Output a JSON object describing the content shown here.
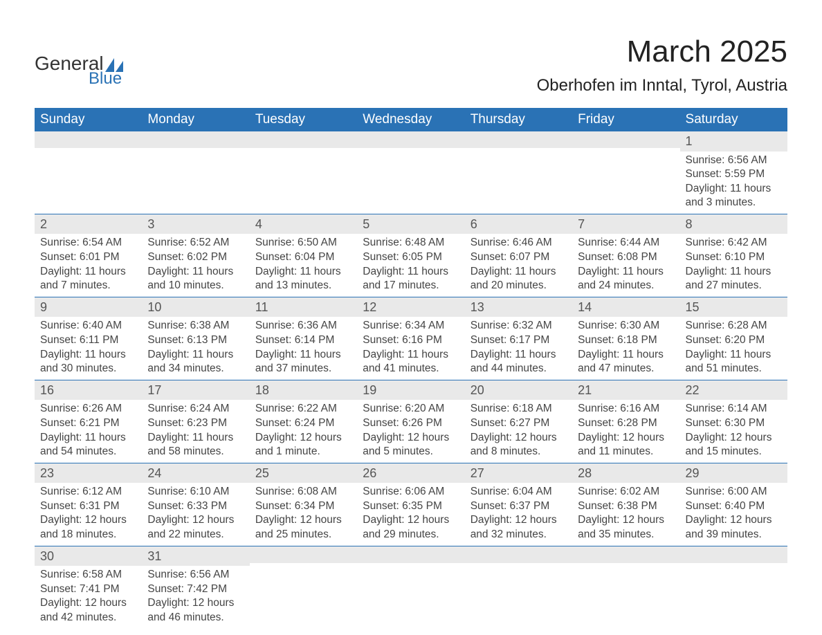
{
  "logo": {
    "word1": "General",
    "word2": "Blue",
    "tri_color": "#2a72b5"
  },
  "title": {
    "month": "March 2025",
    "location": "Oberhofen im Inntal, Tyrol, Austria"
  },
  "colors": {
    "header_bg": "#2a72b5",
    "header_text": "#ffffff",
    "daynum_bg": "#e9e9e9",
    "daynum_text": "#555555",
    "body_text": "#444444",
    "row_border": "#2a72b5",
    "page_bg": "#ffffff"
  },
  "day_headers": [
    "Sunday",
    "Monday",
    "Tuesday",
    "Wednesday",
    "Thursday",
    "Friday",
    "Saturday"
  ],
  "weeks": [
    [
      {
        "n": "",
        "sr": "",
        "ss": "",
        "dl": ""
      },
      {
        "n": "",
        "sr": "",
        "ss": "",
        "dl": ""
      },
      {
        "n": "",
        "sr": "",
        "ss": "",
        "dl": ""
      },
      {
        "n": "",
        "sr": "",
        "ss": "",
        "dl": ""
      },
      {
        "n": "",
        "sr": "",
        "ss": "",
        "dl": ""
      },
      {
        "n": "",
        "sr": "",
        "ss": "",
        "dl": ""
      },
      {
        "n": "1",
        "sr": "Sunrise: 6:56 AM",
        "ss": "Sunset: 5:59 PM",
        "dl": "Daylight: 11 hours and 3 minutes."
      }
    ],
    [
      {
        "n": "2",
        "sr": "Sunrise: 6:54 AM",
        "ss": "Sunset: 6:01 PM",
        "dl": "Daylight: 11 hours and 7 minutes."
      },
      {
        "n": "3",
        "sr": "Sunrise: 6:52 AM",
        "ss": "Sunset: 6:02 PM",
        "dl": "Daylight: 11 hours and 10 minutes."
      },
      {
        "n": "4",
        "sr": "Sunrise: 6:50 AM",
        "ss": "Sunset: 6:04 PM",
        "dl": "Daylight: 11 hours and 13 minutes."
      },
      {
        "n": "5",
        "sr": "Sunrise: 6:48 AM",
        "ss": "Sunset: 6:05 PM",
        "dl": "Daylight: 11 hours and 17 minutes."
      },
      {
        "n": "6",
        "sr": "Sunrise: 6:46 AM",
        "ss": "Sunset: 6:07 PM",
        "dl": "Daylight: 11 hours and 20 minutes."
      },
      {
        "n": "7",
        "sr": "Sunrise: 6:44 AM",
        "ss": "Sunset: 6:08 PM",
        "dl": "Daylight: 11 hours and 24 minutes."
      },
      {
        "n": "8",
        "sr": "Sunrise: 6:42 AM",
        "ss": "Sunset: 6:10 PM",
        "dl": "Daylight: 11 hours and 27 minutes."
      }
    ],
    [
      {
        "n": "9",
        "sr": "Sunrise: 6:40 AM",
        "ss": "Sunset: 6:11 PM",
        "dl": "Daylight: 11 hours and 30 minutes."
      },
      {
        "n": "10",
        "sr": "Sunrise: 6:38 AM",
        "ss": "Sunset: 6:13 PM",
        "dl": "Daylight: 11 hours and 34 minutes."
      },
      {
        "n": "11",
        "sr": "Sunrise: 6:36 AM",
        "ss": "Sunset: 6:14 PM",
        "dl": "Daylight: 11 hours and 37 minutes."
      },
      {
        "n": "12",
        "sr": "Sunrise: 6:34 AM",
        "ss": "Sunset: 6:16 PM",
        "dl": "Daylight: 11 hours and 41 minutes."
      },
      {
        "n": "13",
        "sr": "Sunrise: 6:32 AM",
        "ss": "Sunset: 6:17 PM",
        "dl": "Daylight: 11 hours and 44 minutes."
      },
      {
        "n": "14",
        "sr": "Sunrise: 6:30 AM",
        "ss": "Sunset: 6:18 PM",
        "dl": "Daylight: 11 hours and 47 minutes."
      },
      {
        "n": "15",
        "sr": "Sunrise: 6:28 AM",
        "ss": "Sunset: 6:20 PM",
        "dl": "Daylight: 11 hours and 51 minutes."
      }
    ],
    [
      {
        "n": "16",
        "sr": "Sunrise: 6:26 AM",
        "ss": "Sunset: 6:21 PM",
        "dl": "Daylight: 11 hours and 54 minutes."
      },
      {
        "n": "17",
        "sr": "Sunrise: 6:24 AM",
        "ss": "Sunset: 6:23 PM",
        "dl": "Daylight: 11 hours and 58 minutes."
      },
      {
        "n": "18",
        "sr": "Sunrise: 6:22 AM",
        "ss": "Sunset: 6:24 PM",
        "dl": "Daylight: 12 hours and 1 minute."
      },
      {
        "n": "19",
        "sr": "Sunrise: 6:20 AM",
        "ss": "Sunset: 6:26 PM",
        "dl": "Daylight: 12 hours and 5 minutes."
      },
      {
        "n": "20",
        "sr": "Sunrise: 6:18 AM",
        "ss": "Sunset: 6:27 PM",
        "dl": "Daylight: 12 hours and 8 minutes."
      },
      {
        "n": "21",
        "sr": "Sunrise: 6:16 AM",
        "ss": "Sunset: 6:28 PM",
        "dl": "Daylight: 12 hours and 11 minutes."
      },
      {
        "n": "22",
        "sr": "Sunrise: 6:14 AM",
        "ss": "Sunset: 6:30 PM",
        "dl": "Daylight: 12 hours and 15 minutes."
      }
    ],
    [
      {
        "n": "23",
        "sr": "Sunrise: 6:12 AM",
        "ss": "Sunset: 6:31 PM",
        "dl": "Daylight: 12 hours and 18 minutes."
      },
      {
        "n": "24",
        "sr": "Sunrise: 6:10 AM",
        "ss": "Sunset: 6:33 PM",
        "dl": "Daylight: 12 hours and 22 minutes."
      },
      {
        "n": "25",
        "sr": "Sunrise: 6:08 AM",
        "ss": "Sunset: 6:34 PM",
        "dl": "Daylight: 12 hours and 25 minutes."
      },
      {
        "n": "26",
        "sr": "Sunrise: 6:06 AM",
        "ss": "Sunset: 6:35 PM",
        "dl": "Daylight: 12 hours and 29 minutes."
      },
      {
        "n": "27",
        "sr": "Sunrise: 6:04 AM",
        "ss": "Sunset: 6:37 PM",
        "dl": "Daylight: 12 hours and 32 minutes."
      },
      {
        "n": "28",
        "sr": "Sunrise: 6:02 AM",
        "ss": "Sunset: 6:38 PM",
        "dl": "Daylight: 12 hours and 35 minutes."
      },
      {
        "n": "29",
        "sr": "Sunrise: 6:00 AM",
        "ss": "Sunset: 6:40 PM",
        "dl": "Daylight: 12 hours and 39 minutes."
      }
    ],
    [
      {
        "n": "30",
        "sr": "Sunrise: 6:58 AM",
        "ss": "Sunset: 7:41 PM",
        "dl": "Daylight: 12 hours and 42 minutes."
      },
      {
        "n": "31",
        "sr": "Sunrise: 6:56 AM",
        "ss": "Sunset: 7:42 PM",
        "dl": "Daylight: 12 hours and 46 minutes."
      },
      {
        "n": "",
        "sr": "",
        "ss": "",
        "dl": ""
      },
      {
        "n": "",
        "sr": "",
        "ss": "",
        "dl": ""
      },
      {
        "n": "",
        "sr": "",
        "ss": "",
        "dl": ""
      },
      {
        "n": "",
        "sr": "",
        "ss": "",
        "dl": ""
      },
      {
        "n": "",
        "sr": "",
        "ss": "",
        "dl": ""
      }
    ]
  ]
}
